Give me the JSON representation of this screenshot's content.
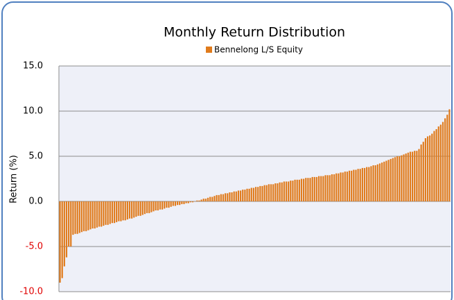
{
  "chart_data": {
    "type": "bar",
    "title": "Monthly Return Distribution",
    "y_label": "Return (%)",
    "series": [
      {
        "name": "Bennelong L/S Equity",
        "color": "#e07b1c",
        "values": [
          -9.0,
          -8.5,
          -7.2,
          -6.2,
          -5.0,
          -5.0,
          -3.7,
          -3.6,
          -3.6,
          -3.5,
          -3.4,
          -3.3,
          -3.3,
          -3.2,
          -3.1,
          -3.0,
          -3.0,
          -2.9,
          -2.8,
          -2.8,
          -2.7,
          -2.6,
          -2.6,
          -2.5,
          -2.4,
          -2.4,
          -2.3,
          -2.2,
          -2.2,
          -2.1,
          -2.1,
          -2.0,
          -1.9,
          -1.9,
          -1.8,
          -1.7,
          -1.6,
          -1.6,
          -1.5,
          -1.4,
          -1.3,
          -1.3,
          -1.2,
          -1.1,
          -1.0,
          -1.0,
          -0.9,
          -0.9,
          -0.8,
          -0.7,
          -0.7,
          -0.6,
          -0.5,
          -0.5,
          -0.4,
          -0.4,
          -0.3,
          -0.3,
          -0.2,
          -0.2,
          -0.1,
          -0.1,
          0.0,
          0.1,
          0.1,
          0.2,
          0.3,
          0.3,
          0.4,
          0.5,
          0.5,
          0.6,
          0.7,
          0.7,
          0.8,
          0.8,
          0.9,
          0.9,
          1.0,
          1.0,
          1.1,
          1.1,
          1.2,
          1.2,
          1.3,
          1.3,
          1.4,
          1.4,
          1.5,
          1.5,
          1.6,
          1.6,
          1.7,
          1.7,
          1.8,
          1.8,
          1.9,
          1.9,
          1.9,
          2.0,
          2.0,
          2.1,
          2.1,
          2.2,
          2.2,
          2.2,
          2.3,
          2.3,
          2.4,
          2.4,
          2.4,
          2.5,
          2.5,
          2.6,
          2.6,
          2.6,
          2.7,
          2.7,
          2.7,
          2.8,
          2.8,
          2.8,
          2.9,
          2.9,
          2.9,
          3.0,
          3.0,
          3.1,
          3.1,
          3.2,
          3.2,
          3.3,
          3.3,
          3.4,
          3.4,
          3.5,
          3.5,
          3.6,
          3.6,
          3.7,
          3.7,
          3.8,
          3.8,
          3.9,
          4.0,
          4.0,
          4.1,
          4.2,
          4.3,
          4.4,
          4.5,
          4.6,
          4.7,
          4.8,
          4.9,
          5.0,
          5.0,
          5.1,
          5.2,
          5.3,
          5.4,
          5.5,
          5.5,
          5.6,
          5.6,
          5.8,
          6.3,
          6.6,
          7.0,
          7.2,
          7.3,
          7.5,
          7.8,
          8.0,
          8.3,
          8.5,
          8.8,
          9.2,
          9.6,
          10.2
        ]
      }
    ],
    "ylim": [
      -10,
      15
    ],
    "yticks": [
      {
        "value": -10,
        "label": "-10.0"
      },
      {
        "value": -5,
        "label": "-5.0"
      },
      {
        "value": 0,
        "label": "0.0"
      },
      {
        "value": 5,
        "label": "5.0"
      },
      {
        "value": 10,
        "label": "10.0"
      },
      {
        "value": 15,
        "label": "15.0"
      }
    ],
    "negative_tick_color": "#e00000",
    "grid": true,
    "legend": "top"
  }
}
